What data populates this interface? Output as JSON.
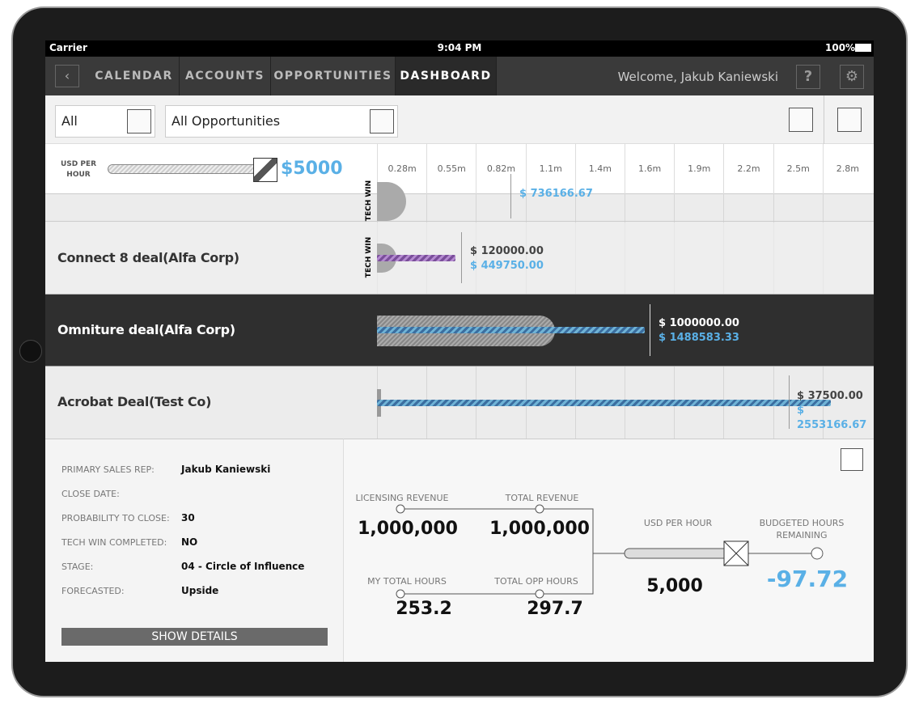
{
  "status": {
    "carrier": "Carrier",
    "time": "9:04 PM",
    "battery": "100%"
  },
  "nav": {
    "tabs": [
      "CALENDAR",
      "ACCOUNTS",
      "OPPORTUNITIES",
      "DASHBOARD"
    ],
    "active": "DASHBOARD",
    "welcome": "Welcome, Jakub Kaniewski",
    "help": "?"
  },
  "filters": {
    "owner": "All",
    "opportunities": "All Opportunities"
  },
  "rate": {
    "label": "USD PER HOUR",
    "value": "$5000"
  },
  "scale": [
    "0.28m",
    "0.55m",
    "0.82m",
    "1.1m",
    "1.4m",
    "1.6m",
    "1.9m",
    "2.2m",
    "2.5m",
    "2.8m"
  ],
  "rows": [
    {
      "tag": "TECH WIN",
      "amount": "$ 736166.67"
    },
    {
      "name": "Connect 8 deal(Alfa Corp)",
      "tag": "TECH WIN",
      "amount": "$ 120000.00",
      "total": "$ 449750.00"
    },
    {
      "name": "Omniture deal(Alfa Corp)",
      "amount": "$ 1000000.00",
      "total": "$ 1488583.33"
    },
    {
      "name": "Acrobat Deal(Test Co)",
      "amount": "$ 37500.00",
      "total": "$ 2553166.67"
    }
  ],
  "details": {
    "fields": [
      [
        "PRIMARY SALES REP:",
        "Jakub Kaniewski"
      ],
      [
        "CLOSE DATE:",
        ""
      ],
      [
        "PROBABILITY TO CLOSE:",
        "30"
      ],
      [
        "TECH WIN COMPLETED:",
        "NO"
      ],
      [
        "STAGE:",
        "04 - Circle of Influence"
      ],
      [
        "FORECASTED:",
        "Upside"
      ]
    ],
    "button": "SHOW DETAILS"
  },
  "summary": {
    "licensing_label": "LICENSING REVENUE",
    "licensing": "1,000,000",
    "total_label": "TOTAL REVENUE",
    "total": "1,000,000",
    "my_hours_label": "MY TOTAL HOURS",
    "my_hours": "253.2",
    "opp_hours_label": "TOTAL OPP HOURS",
    "opp_hours": "297.7",
    "rate_label": "USD PER HOUR",
    "rate": "5,000",
    "budget_label_1": "BUDGETED HOURS",
    "budget_label_2": "REMAINING",
    "budget": "-97.72"
  }
}
